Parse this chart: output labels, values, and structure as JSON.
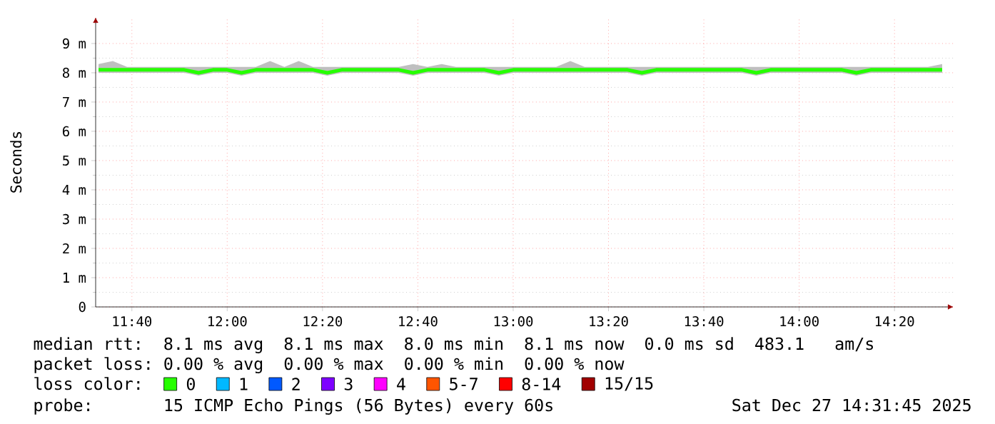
{
  "chart_data": {
    "type": "line",
    "ylabel": "Seconds",
    "x": [
      11.55,
      11.6,
      11.65,
      11.7,
      11.75,
      11.8,
      11.85,
      11.9,
      11.95,
      12,
      12.05,
      12.1,
      12.15,
      12.2,
      12.25,
      12.3,
      12.35,
      12.4,
      12.45,
      12.5,
      12.55,
      12.6,
      12.65,
      12.7,
      12.75,
      12.8,
      12.85,
      12.9,
      12.95,
      13,
      13.05,
      13.1,
      13.15,
      13.2,
      13.25,
      13.3,
      13.35,
      13.4,
      13.45,
      13.5,
      13.55,
      13.6,
      13.65,
      13.7,
      13.75,
      13.8,
      13.85,
      13.9,
      13.95,
      14,
      14.05,
      14.1,
      14.15,
      14.2,
      14.25,
      14.3,
      14.35,
      14.4,
      14.45,
      14.5
    ],
    "series": [
      {
        "name": "0",
        "color": "#26ff00",
        "values": [
          8.1,
          8.1,
          8.1,
          8.1,
          8.1,
          8.1,
          8.1,
          8.0,
          8.1,
          8.1,
          8.0,
          8.1,
          8.1,
          8.1,
          8.1,
          8.1,
          8.0,
          8.1,
          8.1,
          8.1,
          8.1,
          8.1,
          8.0,
          8.1,
          8.1,
          8.1,
          8.1,
          8.1,
          8.0,
          8.1,
          8.1,
          8.1,
          8.1,
          8.1,
          8.1,
          8.1,
          8.1,
          8.1,
          8.0,
          8.1,
          8.1,
          8.1,
          8.1,
          8.1,
          8.1,
          8.1,
          8.0,
          8.1,
          8.1,
          8.1,
          8.1,
          8.1,
          8.1,
          8.0,
          8.1,
          8.1,
          8.1,
          8.1,
          8.1,
          8.1
        ],
        "lower": [
          8.0,
          8.0,
          8.0,
          8.0,
          8.0,
          8.0,
          8.0,
          7.9,
          8.0,
          8.0,
          7.9,
          8.0,
          8.0,
          8.0,
          8.0,
          8.0,
          7.9,
          8.0,
          8.0,
          8.0,
          8.0,
          8.0,
          7.9,
          8.0,
          8.0,
          8.0,
          8.0,
          8.0,
          7.9,
          8.0,
          8.0,
          8.0,
          8.0,
          8.0,
          8.0,
          8.0,
          8.0,
          8.0,
          7.9,
          8.0,
          8.0,
          8.0,
          8.0,
          8.0,
          8.0,
          8.0,
          7.9,
          8.0,
          8.0,
          8.0,
          8.0,
          8.0,
          8.0,
          7.9,
          8.0,
          8.0,
          8.0,
          8.0,
          8.0,
          8.0
        ],
        "upper": [
          8.3,
          8.4,
          8.2,
          8.2,
          8.2,
          8.2,
          8.2,
          8.2,
          8.2,
          8.2,
          8.2,
          8.2,
          8.4,
          8.2,
          8.4,
          8.2,
          8.2,
          8.2,
          8.2,
          8.2,
          8.2,
          8.2,
          8.3,
          8.2,
          8.3,
          8.2,
          8.2,
          8.2,
          8.2,
          8.2,
          8.2,
          8.2,
          8.2,
          8.4,
          8.2,
          8.2,
          8.2,
          8.2,
          8.2,
          8.2,
          8.2,
          8.2,
          8.2,
          8.2,
          8.2,
          8.2,
          8.2,
          8.2,
          8.2,
          8.2,
          8.2,
          8.2,
          8.2,
          8.2,
          8.2,
          8.2,
          8.2,
          8.2,
          8.2,
          8.3
        ]
      },
      {
        "name": "1",
        "color": "#00b8ff",
        "values": [
          null,
          null,
          null,
          null,
          null,
          null,
          null,
          null,
          null,
          null,
          null,
          null,
          null,
          null,
          null,
          null,
          null,
          null,
          null,
          null,
          null,
          null,
          null,
          null,
          null,
          null,
          null,
          null,
          null,
          null,
          null,
          null,
          null,
          null,
          null,
          null,
          null,
          null,
          null,
          null,
          null,
          null,
          null,
          null,
          null,
          null,
          null,
          null,
          null,
          null,
          null,
          null,
          null,
          null,
          null,
          null,
          null,
          null,
          null,
          null
        ]
      },
      {
        "name": "2",
        "color": "#0059ff",
        "values": [
          null,
          null,
          null,
          null,
          null,
          null,
          null,
          null,
          null,
          null,
          null,
          null,
          null,
          null,
          null,
          null,
          null,
          null,
          null,
          null,
          null,
          null,
          null,
          null,
          null,
          null,
          null,
          null,
          null,
          null,
          null,
          null,
          null,
          null,
          null,
          null,
          null,
          null,
          null,
          null,
          null,
          null,
          null,
          null,
          null,
          null,
          null,
          null,
          null,
          null,
          null,
          null,
          null,
          null,
          null,
          null,
          null,
          null,
          null,
          null
        ]
      },
      {
        "name": "3",
        "color": "#7e00ff",
        "values": [
          null,
          null,
          null,
          null,
          null,
          null,
          null,
          null,
          null,
          null,
          null,
          null,
          null,
          null,
          null,
          null,
          null,
          null,
          null,
          null,
          null,
          null,
          null,
          null,
          null,
          null,
          null,
          null,
          null,
          null,
          null,
          null,
          null,
          null,
          null,
          null,
          null,
          null,
          null,
          null,
          null,
          null,
          null,
          null,
          null,
          null,
          null,
          null,
          null,
          null,
          null,
          null,
          null,
          null,
          null,
          null,
          null,
          null,
          null,
          null
        ]
      },
      {
        "name": "4",
        "color": "#ff00ff",
        "values": [
          null,
          null,
          null,
          null,
          null,
          null,
          null,
          null,
          null,
          null,
          null,
          null,
          null,
          null,
          null,
          null,
          null,
          null,
          null,
          null,
          null,
          null,
          null,
          null,
          null,
          null,
          null,
          null,
          null,
          null,
          null,
          null,
          null,
          null,
          null,
          null,
          null,
          null,
          null,
          null,
          null,
          null,
          null,
          null,
          null,
          null,
          null,
          null,
          null,
          null,
          null,
          null,
          null,
          null,
          null,
          null,
          null,
          null,
          null,
          null
        ]
      },
      {
        "name": "5-7",
        "color": "#ff5500",
        "values": [
          null,
          null,
          null,
          null,
          null,
          null,
          null,
          null,
          null,
          null,
          null,
          null,
          null,
          null,
          null,
          null,
          null,
          null,
          null,
          null,
          null,
          null,
          null,
          null,
          null,
          null,
          null,
          null,
          null,
          null,
          null,
          null,
          null,
          null,
          null,
          null,
          null,
          null,
          null,
          null,
          null,
          null,
          null,
          null,
          null,
          null,
          null,
          null,
          null,
          null,
          null,
          null,
          null,
          null,
          null,
          null,
          null,
          null,
          null,
          null
        ]
      },
      {
        "name": "8-14",
        "color": "#ff0000",
        "values": [
          null,
          null,
          null,
          null,
          null,
          null,
          null,
          null,
          null,
          null,
          null,
          null,
          null,
          null,
          null,
          null,
          null,
          null,
          null,
          null,
          null,
          null,
          null,
          null,
          null,
          null,
          null,
          null,
          null,
          null,
          null,
          null,
          null,
          null,
          null,
          null,
          null,
          null,
          null,
          null,
          null,
          null,
          null,
          null,
          null,
          null,
          null,
          null,
          null,
          null,
          null,
          null,
          null,
          null,
          null,
          null,
          null,
          null,
          null,
          null
        ]
      },
      {
        "name": "15/15",
        "color": "#a10000",
        "values": [
          null,
          null,
          null,
          null,
          null,
          null,
          null,
          null,
          null,
          null,
          null,
          null,
          null,
          null,
          null,
          null,
          null,
          null,
          null,
          null,
          null,
          null,
          null,
          null,
          null,
          null,
          null,
          null,
          null,
          null,
          null,
          null,
          null,
          null,
          null,
          null,
          null,
          null,
          null,
          null,
          null,
          null,
          null,
          null,
          null,
          null,
          null,
          null,
          null,
          null,
          null,
          null,
          null,
          null,
          null,
          null,
          null,
          null,
          null,
          null
        ]
      }
    ],
    "xlim": [
      11.54,
      14.54
    ],
    "xticks": [
      {
        "value": 11.6667,
        "label": "11:40"
      },
      {
        "value": 12,
        "label": "12:00"
      },
      {
        "value": 12.3333,
        "label": "12:20"
      },
      {
        "value": 12.6667,
        "label": "12:40"
      },
      {
        "value": 13,
        "label": "13:00"
      },
      {
        "value": 13.3333,
        "label": "13:20"
      },
      {
        "value": 13.6667,
        "label": "13:40"
      },
      {
        "value": 14,
        "label": "14:00"
      },
      {
        "value": 14.3333,
        "label": "14:20"
      }
    ],
    "ylim": [
      0,
      9.9
    ],
    "yticks": [
      0,
      {
        "value": 1,
        "label": "1 m"
      },
      {
        "value": 2,
        "label": "2 m"
      },
      {
        "value": 3,
        "label": "3 m"
      },
      {
        "value": 4,
        "label": "4 m"
      },
      {
        "value": 5,
        "label": "5 m"
      },
      {
        "value": 6,
        "label": "6 m"
      },
      {
        "value": 7,
        "label": "7 m"
      },
      {
        "value": 8,
        "label": "8 m"
      },
      {
        "value": 9,
        "label": "9 m"
      }
    ],
    "grid": true,
    "legend": "bottom",
    "annotations": [
      "median rtt:  8.1 ms avg  8.1 ms max  8.0 ms min  8.1 ms now  0.0 ms sd  483.1   am/s",
      "packet loss: 0.00 % avg  0.00 % max  0.00 % min  0.00 % now",
      "loss color:",
      "probe:       15 ICMP Echo Pings (56 Bytes) every 60s",
      "Sat Dec 27 14:31:45 2025"
    ]
  }
}
